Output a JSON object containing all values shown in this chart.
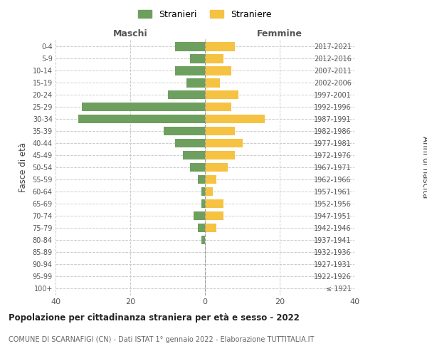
{
  "age_groups": [
    "100+",
    "95-99",
    "90-94",
    "85-89",
    "80-84",
    "75-79",
    "70-74",
    "65-69",
    "60-64",
    "55-59",
    "50-54",
    "45-49",
    "40-44",
    "35-39",
    "30-34",
    "25-29",
    "20-24",
    "15-19",
    "10-14",
    "5-9",
    "0-4"
  ],
  "birth_years": [
    "≤ 1921",
    "1922-1926",
    "1927-1931",
    "1932-1936",
    "1937-1941",
    "1942-1946",
    "1947-1951",
    "1952-1956",
    "1957-1961",
    "1962-1966",
    "1967-1971",
    "1972-1976",
    "1977-1981",
    "1982-1986",
    "1987-1991",
    "1992-1996",
    "1997-2001",
    "2002-2006",
    "2007-2011",
    "2012-2016",
    "2017-2021"
  ],
  "maschi": [
    0,
    0,
    0,
    0,
    1,
    2,
    3,
    1,
    1,
    2,
    4,
    6,
    8,
    11,
    34,
    33,
    10,
    5,
    8,
    4,
    8
  ],
  "femmine": [
    0,
    0,
    0,
    0,
    0,
    3,
    5,
    5,
    2,
    3,
    6,
    8,
    10,
    8,
    16,
    7,
    9,
    4,
    7,
    5,
    8
  ],
  "male_color": "#6d9f5e",
  "female_color": "#f5c242",
  "title_main": "Popolazione per cittadinanza straniera per età e sesso - 2022",
  "title_sub": "COMUNE DI SCARNAFIGI (CN) - Dati ISTAT 1° gennaio 2022 - Elaborazione TUTTITALIA.IT",
  "xlabel_left": "Maschi",
  "xlabel_right": "Femmine",
  "ylabel_left": "Fasce di età",
  "ylabel_right": "Anni di nascita",
  "legend_male": "Stranieri",
  "legend_female": "Straniere",
  "xlim": 40,
  "background_color": "#ffffff",
  "grid_color": "#cccccc",
  "bar_height": 0.75
}
